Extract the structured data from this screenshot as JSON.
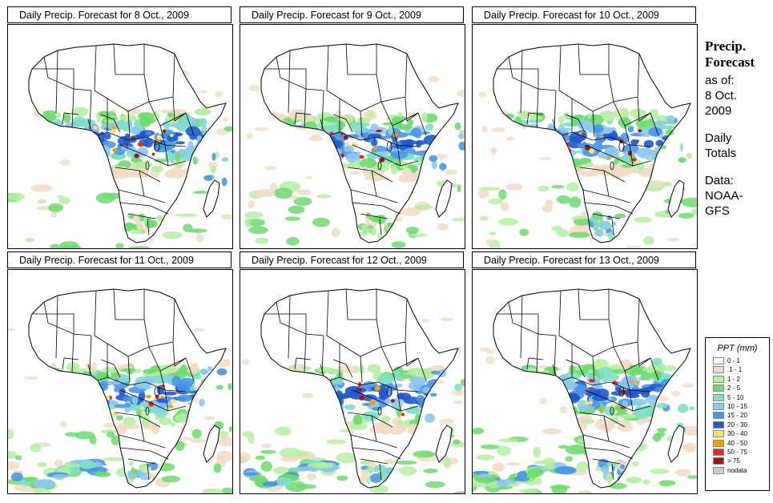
{
  "title_prefix": "Daily Precip. Forecast for",
  "panels": [
    {
      "title": "Daily Precip. Forecast for  8 Oct., 2009"
    },
    {
      "title": "Daily Precip. Forecast for  9 Oct., 2009"
    },
    {
      "title": "Daily Precip. Forecast for  10 Oct., 2009"
    },
    {
      "title": "Daily Precip. Forecast for  11 Oct., 2009"
    },
    {
      "title": "Daily Precip. Forecast for  12 Oct., 2009"
    },
    {
      "title": "Daily Precip. Forecast for  13 Oct., 2009"
    }
  ],
  "side": {
    "heading_line1": "Precip.",
    "heading_line2": "Forecast",
    "asof_line1": "as of:",
    "asof_line2": "8 Oct.",
    "asof_line3": "2009",
    "totals_line1": "Daily",
    "totals_line2": "Totals",
    "data_line1": "Data:",
    "data_line2": "NOAA-",
    "data_line3": "GFS"
  },
  "legend": {
    "title": "PPT (mm)",
    "items": [
      {
        "label": "0 - 1",
        "color": "#ffffff"
      },
      {
        "label": ".1 - 1",
        "color": "#f2dcc4"
      },
      {
        "label": "1 - 2",
        "color": "#b4f0a0"
      },
      {
        "label": "2 - 5",
        "color": "#6cdc6c"
      },
      {
        "label": "5 - 10",
        "color": "#7ee0c8"
      },
      {
        "label": "10 - 15",
        "color": "#8cc8f0"
      },
      {
        "label": "15 - 20",
        "color": "#4a96e6"
      },
      {
        "label": "20 - 30",
        "color": "#1e5ad2"
      },
      {
        "label": "30 - 40",
        "color": "#f5e07a"
      },
      {
        "label": "40 - 50",
        "color": "#f5a000"
      },
      {
        "label": "50 - 75",
        "color": "#e62814"
      },
      {
        "label": "> 75",
        "color": "#a01414"
      },
      {
        "label": "nodata",
        "color": "#cccccc"
      }
    ]
  }
}
